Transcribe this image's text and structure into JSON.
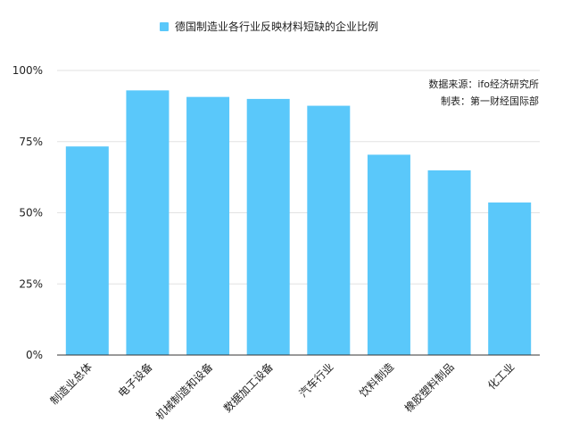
{
  "chart_data": {
    "type": "bar",
    "legend": {
      "label": "德国制造业各行业反映材料短缺的企业比例",
      "position": "top"
    },
    "categories": [
      "制造业总体",
      "电子设备",
      "机械制造和设备",
      "数据加工设备",
      "汽车行业",
      "饮料制造",
      "橡胶塑料制品",
      "化工业"
    ],
    "series": [
      {
        "name": "德国制造业各行业反映材料短缺的企业比例",
        "values": [
          73.3,
          93.0,
          90.7,
          90.0,
          87.6,
          70.4,
          64.9,
          53.6
        ],
        "color": "#5ac8fa"
      }
    ],
    "y_ticks": [
      "0%",
      "25%",
      "50%",
      "75%",
      "100%"
    ],
    "ylim": [
      0,
      100
    ],
    "grid": true,
    "source_lines": [
      "数据来源：ifo经济研究所",
      "制表：第一财经国际部"
    ],
    "colors": {
      "bar": "#5ac8fa",
      "grid": "#e2e2e2",
      "axis": "#333333",
      "text": "#222222"
    }
  }
}
